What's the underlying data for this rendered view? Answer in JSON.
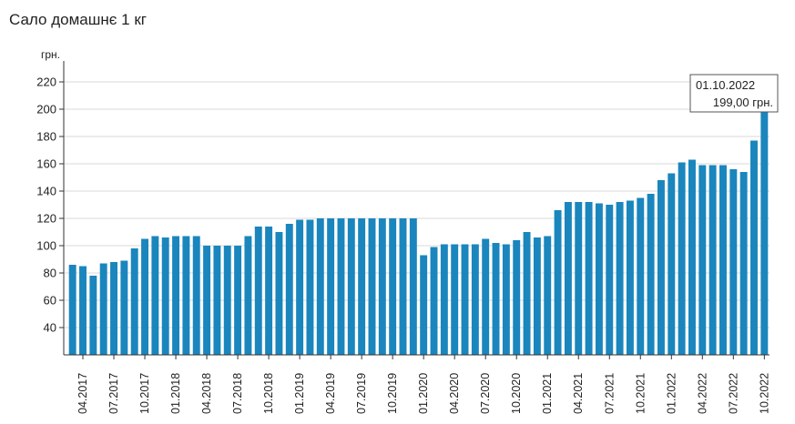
{
  "title": "Сало домашнє 1 кг",
  "chart_data": {
    "type": "bar",
    "title": "Сало домашнє 1 кг",
    "ylabel": "грн.",
    "xlabel": "",
    "ylim": [
      20,
      230
    ],
    "yticks": [
      40,
      60,
      80,
      100,
      120,
      140,
      160,
      180,
      200,
      220
    ],
    "grid": true,
    "bar_color": "#1a86bd",
    "start_month": "2017-03",
    "x_tick_labels": [
      "04.2017",
      "07.2017",
      "10.2017",
      "01.2018",
      "04.2018",
      "07.2018",
      "10.2018",
      "01.2019",
      "04.2019",
      "07.2019",
      "10.2019",
      "01.2020",
      "04.2020",
      "07.2020",
      "10.2020",
      "01.2021",
      "04.2021",
      "07.2021",
      "10.2021",
      "01.2022",
      "04.2022",
      "07.2022",
      "10.2022"
    ],
    "values": [
      86,
      85,
      78,
      87,
      88,
      89,
      98,
      105,
      107,
      106,
      107,
      107,
      107,
      100,
      100,
      100,
      100,
      107,
      114,
      114,
      110,
      116,
      119,
      119,
      120,
      120,
      120,
      120,
      120,
      120,
      120,
      120,
      120,
      120,
      93,
      99,
      101,
      101,
      101,
      101,
      105,
      102,
      101,
      104,
      110,
      106,
      107,
      126,
      132,
      132,
      132,
      131,
      130,
      132,
      133,
      135,
      138,
      148,
      153,
      161,
      163,
      159,
      159,
      159,
      156,
      154,
      177,
      199
    ],
    "tooltip": {
      "date": "01.10.2022",
      "value": "199,00 грн."
    }
  }
}
